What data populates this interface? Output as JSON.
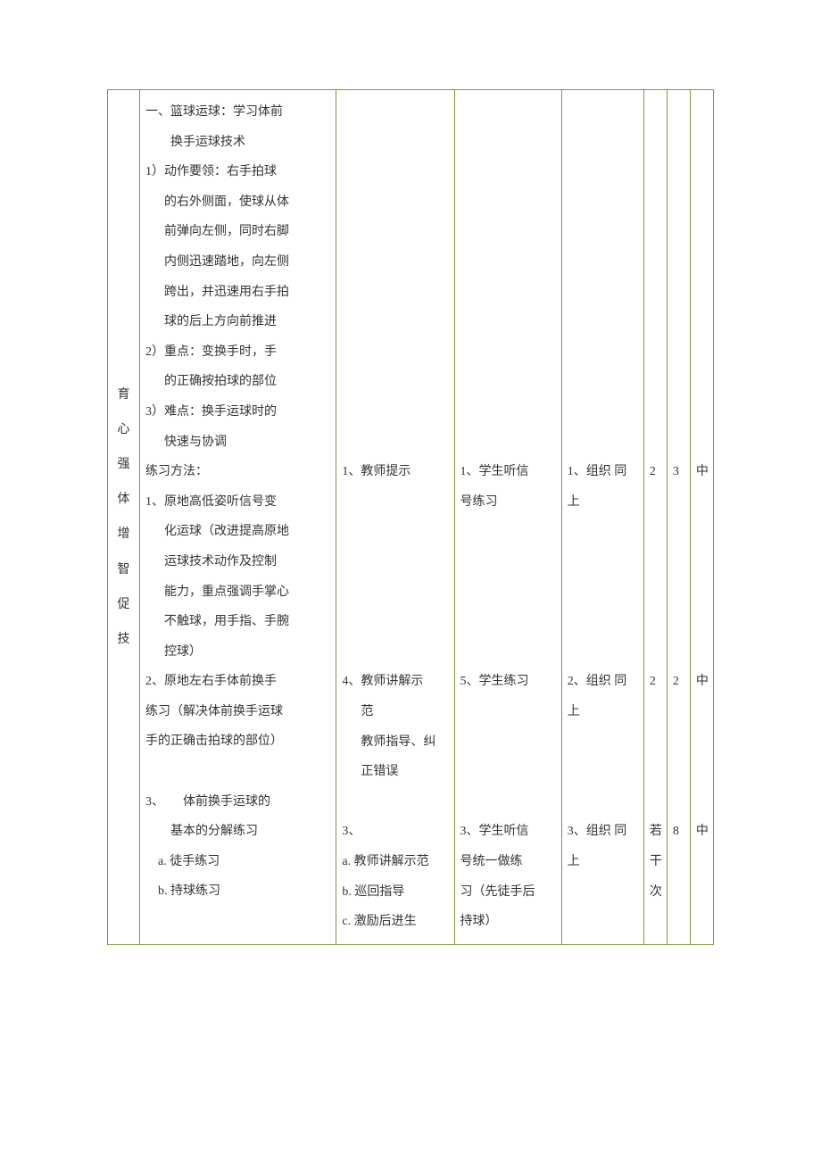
{
  "phase": {
    "chars": [
      "育",
      "心",
      "强",
      "体",
      "增",
      "智",
      "促",
      "技"
    ]
  },
  "content": {
    "heading": "一、篮球运球：学习体前",
    "heading_l2": "换手运球技术",
    "item1_a": "1）动作要领：右手拍球",
    "item1_b": "的右外侧面，使球从体",
    "item1_c": "前弹向左侧，同时右脚",
    "item1_d": "内侧迅速踏地，向左侧",
    "item1_e": "跨出，并迅速用右手拍",
    "item1_f": "球的后上方向前推进",
    "item2_a": "2）重点：变换手时，手",
    "item2_b": "的正确按拍球的部位",
    "item3_a": "3）难点：换手运球时的",
    "item3_b": "快速与协调",
    "practice_label": "练习方法：",
    "p1_a": "1、原地高低姿听信号变",
    "p1_b": "化运球（改进提高原地",
    "p1_c": "运球技术动作及控制",
    "p1_d": "能力，重点强调手掌心",
    "p1_e": "不触球，用手指、手腕",
    "p1_f": "控球）",
    "p2_a": "2、原地左右手体前换手",
    "p2_b": "练习（解决体前换手运球",
    "p2_c": "手的正确击拍球的部位）",
    "p3_a": "3、　　体前换手运球的",
    "p3_b": "基本的分解练习",
    "p3_sub_a": "a. 徒手练习",
    "p3_sub_b": "b. 持球练习"
  },
  "teacher": {
    "t1": "1、教师提示",
    "t2_a": "4、教师讲解示",
    "t2_b": "范",
    "t2_c": "教师指导、纠",
    "t2_d": "正错误",
    "t3_head": "3、",
    "t3_a": "a. 教师讲解示范",
    "t3_b": "b. 巡回指导",
    "t3_c": "c. 激励后进生"
  },
  "student": {
    "s1_a": "1、学生听信",
    "s1_b": "号练习",
    "s2": "5、学生练习",
    "s3_a": "3、学生听信",
    "s3_b": "号统一做练",
    "s3_c": "习（先徒手后",
    "s3_d": "持球）"
  },
  "org": {
    "o1_a": "1、组织 同",
    "o1_b": "上",
    "o2_a": "2、组织 同",
    "o2_b": "上",
    "o3_a": "3、组织 同",
    "o3_b": "上"
  },
  "metrics": {
    "r1": {
      "a": "2",
      "b": "3",
      "c": "中"
    },
    "r2": {
      "a": "2",
      "b": "2",
      "c": "中"
    },
    "r3": {
      "a_1": "若",
      "a_2": "干",
      "a_3": "次",
      "b": "8",
      "c": "中"
    }
  },
  "colors": {
    "border": "#7a9a3a",
    "text": "#333333",
    "background": "#ffffff"
  }
}
